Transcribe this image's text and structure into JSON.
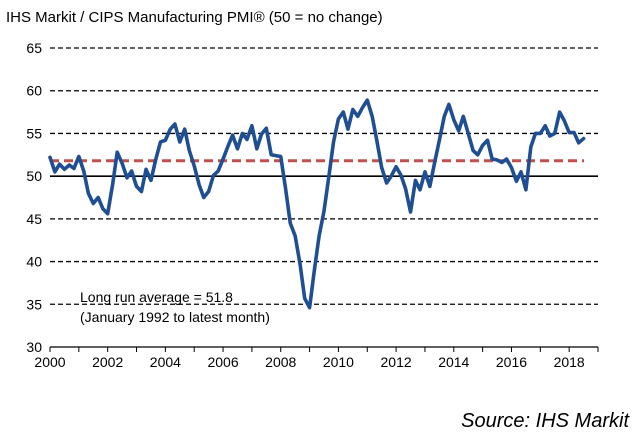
{
  "chart_data": {
    "type": "line",
    "title": "IHS Markit / CIPS Manufacturing PMI® (50 = no change)",
    "source": "Source: IHS Markit",
    "xlim": [
      2000,
      2019
    ],
    "ylim": [
      30,
      65
    ],
    "x_ticks": [
      "2000",
      "2002",
      "2004",
      "2006",
      "2008",
      "2010",
      "2012",
      "2014",
      "2016",
      "2018"
    ],
    "y_ticks": [
      "30",
      "35",
      "40",
      "45",
      "50",
      "55",
      "60",
      "65"
    ],
    "grid": "horizontal dashed",
    "reference_lines": [
      {
        "label": "no change",
        "value": 50
      },
      {
        "label": "Long run average",
        "value": 51.8
      }
    ],
    "annotation": {
      "line1": "Long run average = 51.8",
      "line2": "(January 1992 to latest month)"
    },
    "colors": {
      "series": "#1f4e93",
      "average": "#c0504d",
      "grid": "#000000"
    },
    "series": [
      {
        "values": [
          [
            2000.0,
            52.2
          ],
          [
            2000.17,
            50.5
          ],
          [
            2000.33,
            51.4
          ],
          [
            2000.5,
            50.8
          ],
          [
            2000.67,
            51.3
          ],
          [
            2000.83,
            50.9
          ],
          [
            2001.0,
            52.3
          ],
          [
            2001.17,
            50.6
          ],
          [
            2001.33,
            48.0
          ],
          [
            2001.5,
            46.8
          ],
          [
            2001.67,
            47.5
          ],
          [
            2001.83,
            46.2
          ],
          [
            2002.0,
            45.6
          ],
          [
            2002.17,
            49.0
          ],
          [
            2002.33,
            52.8
          ],
          [
            2002.5,
            51.5
          ],
          [
            2002.67,
            49.8
          ],
          [
            2002.83,
            50.6
          ],
          [
            2003.0,
            48.8
          ],
          [
            2003.17,
            48.2
          ],
          [
            2003.33,
            50.8
          ],
          [
            2003.5,
            49.5
          ],
          [
            2003.67,
            52.0
          ],
          [
            2003.83,
            54.0
          ],
          [
            2004.0,
            54.2
          ],
          [
            2004.17,
            55.5
          ],
          [
            2004.33,
            56.1
          ],
          [
            2004.5,
            54.0
          ],
          [
            2004.67,
            55.5
          ],
          [
            2004.83,
            53.0
          ],
          [
            2005.0,
            51.2
          ],
          [
            2005.17,
            49.0
          ],
          [
            2005.33,
            47.5
          ],
          [
            2005.5,
            48.2
          ],
          [
            2005.67,
            50.1
          ],
          [
            2005.83,
            50.6
          ],
          [
            2006.0,
            52.0
          ],
          [
            2006.17,
            53.5
          ],
          [
            2006.33,
            54.8
          ],
          [
            2006.5,
            53.2
          ],
          [
            2006.67,
            55.0
          ],
          [
            2006.83,
            54.3
          ],
          [
            2007.0,
            55.9
          ],
          [
            2007.17,
            53.2
          ],
          [
            2007.33,
            54.9
          ],
          [
            2007.5,
            55.6
          ],
          [
            2007.67,
            52.5
          ],
          [
            2007.83,
            52.4
          ],
          [
            2008.0,
            52.3
          ],
          [
            2008.17,
            48.5
          ],
          [
            2008.33,
            44.5
          ],
          [
            2008.5,
            43.0
          ],
          [
            2008.67,
            39.7
          ],
          [
            2008.83,
            35.7
          ],
          [
            2009.0,
            34.6
          ],
          [
            2009.17,
            39.1
          ],
          [
            2009.33,
            43.0
          ],
          [
            2009.5,
            45.9
          ],
          [
            2009.67,
            50.0
          ],
          [
            2009.83,
            54.0
          ],
          [
            2010.0,
            56.7
          ],
          [
            2010.17,
            57.5
          ],
          [
            2010.33,
            55.5
          ],
          [
            2010.5,
            57.8
          ],
          [
            2010.67,
            57.0
          ],
          [
            2010.83,
            58.0
          ],
          [
            2011.0,
            58.9
          ],
          [
            2011.17,
            57.0
          ],
          [
            2011.33,
            54.2
          ],
          [
            2011.5,
            51.0
          ],
          [
            2011.67,
            49.2
          ],
          [
            2011.83,
            50.0
          ],
          [
            2012.0,
            51.1
          ],
          [
            2012.17,
            50.1
          ],
          [
            2012.33,
            48.5
          ],
          [
            2012.5,
            45.8
          ],
          [
            2012.67,
            49.5
          ],
          [
            2012.83,
            48.4
          ],
          [
            2013.0,
            50.5
          ],
          [
            2013.17,
            48.8
          ],
          [
            2013.33,
            51.5
          ],
          [
            2013.5,
            54.2
          ],
          [
            2013.67,
            57.0
          ],
          [
            2013.83,
            58.4
          ],
          [
            2014.0,
            56.6
          ],
          [
            2014.17,
            55.3
          ],
          [
            2014.33,
            57.0
          ],
          [
            2014.5,
            55.0
          ],
          [
            2014.67,
            53.0
          ],
          [
            2014.83,
            52.5
          ],
          [
            2015.0,
            53.6
          ],
          [
            2015.17,
            54.2
          ],
          [
            2015.33,
            52.0
          ],
          [
            2015.5,
            51.9
          ],
          [
            2015.67,
            51.6
          ],
          [
            2015.83,
            52.0
          ],
          [
            2016.0,
            51.0
          ],
          [
            2016.17,
            49.4
          ],
          [
            2016.33,
            50.5
          ],
          [
            2016.5,
            48.4
          ],
          [
            2016.67,
            53.4
          ],
          [
            2016.83,
            55.0
          ],
          [
            2017.0,
            55.0
          ],
          [
            2017.17,
            55.9
          ],
          [
            2017.33,
            54.7
          ],
          [
            2017.5,
            55.0
          ],
          [
            2017.67,
            57.5
          ],
          [
            2017.83,
            56.5
          ],
          [
            2018.0,
            55.1
          ],
          [
            2018.17,
            55.1
          ],
          [
            2018.33,
            53.9
          ],
          [
            2018.5,
            54.4
          ]
        ]
      }
    ]
  }
}
